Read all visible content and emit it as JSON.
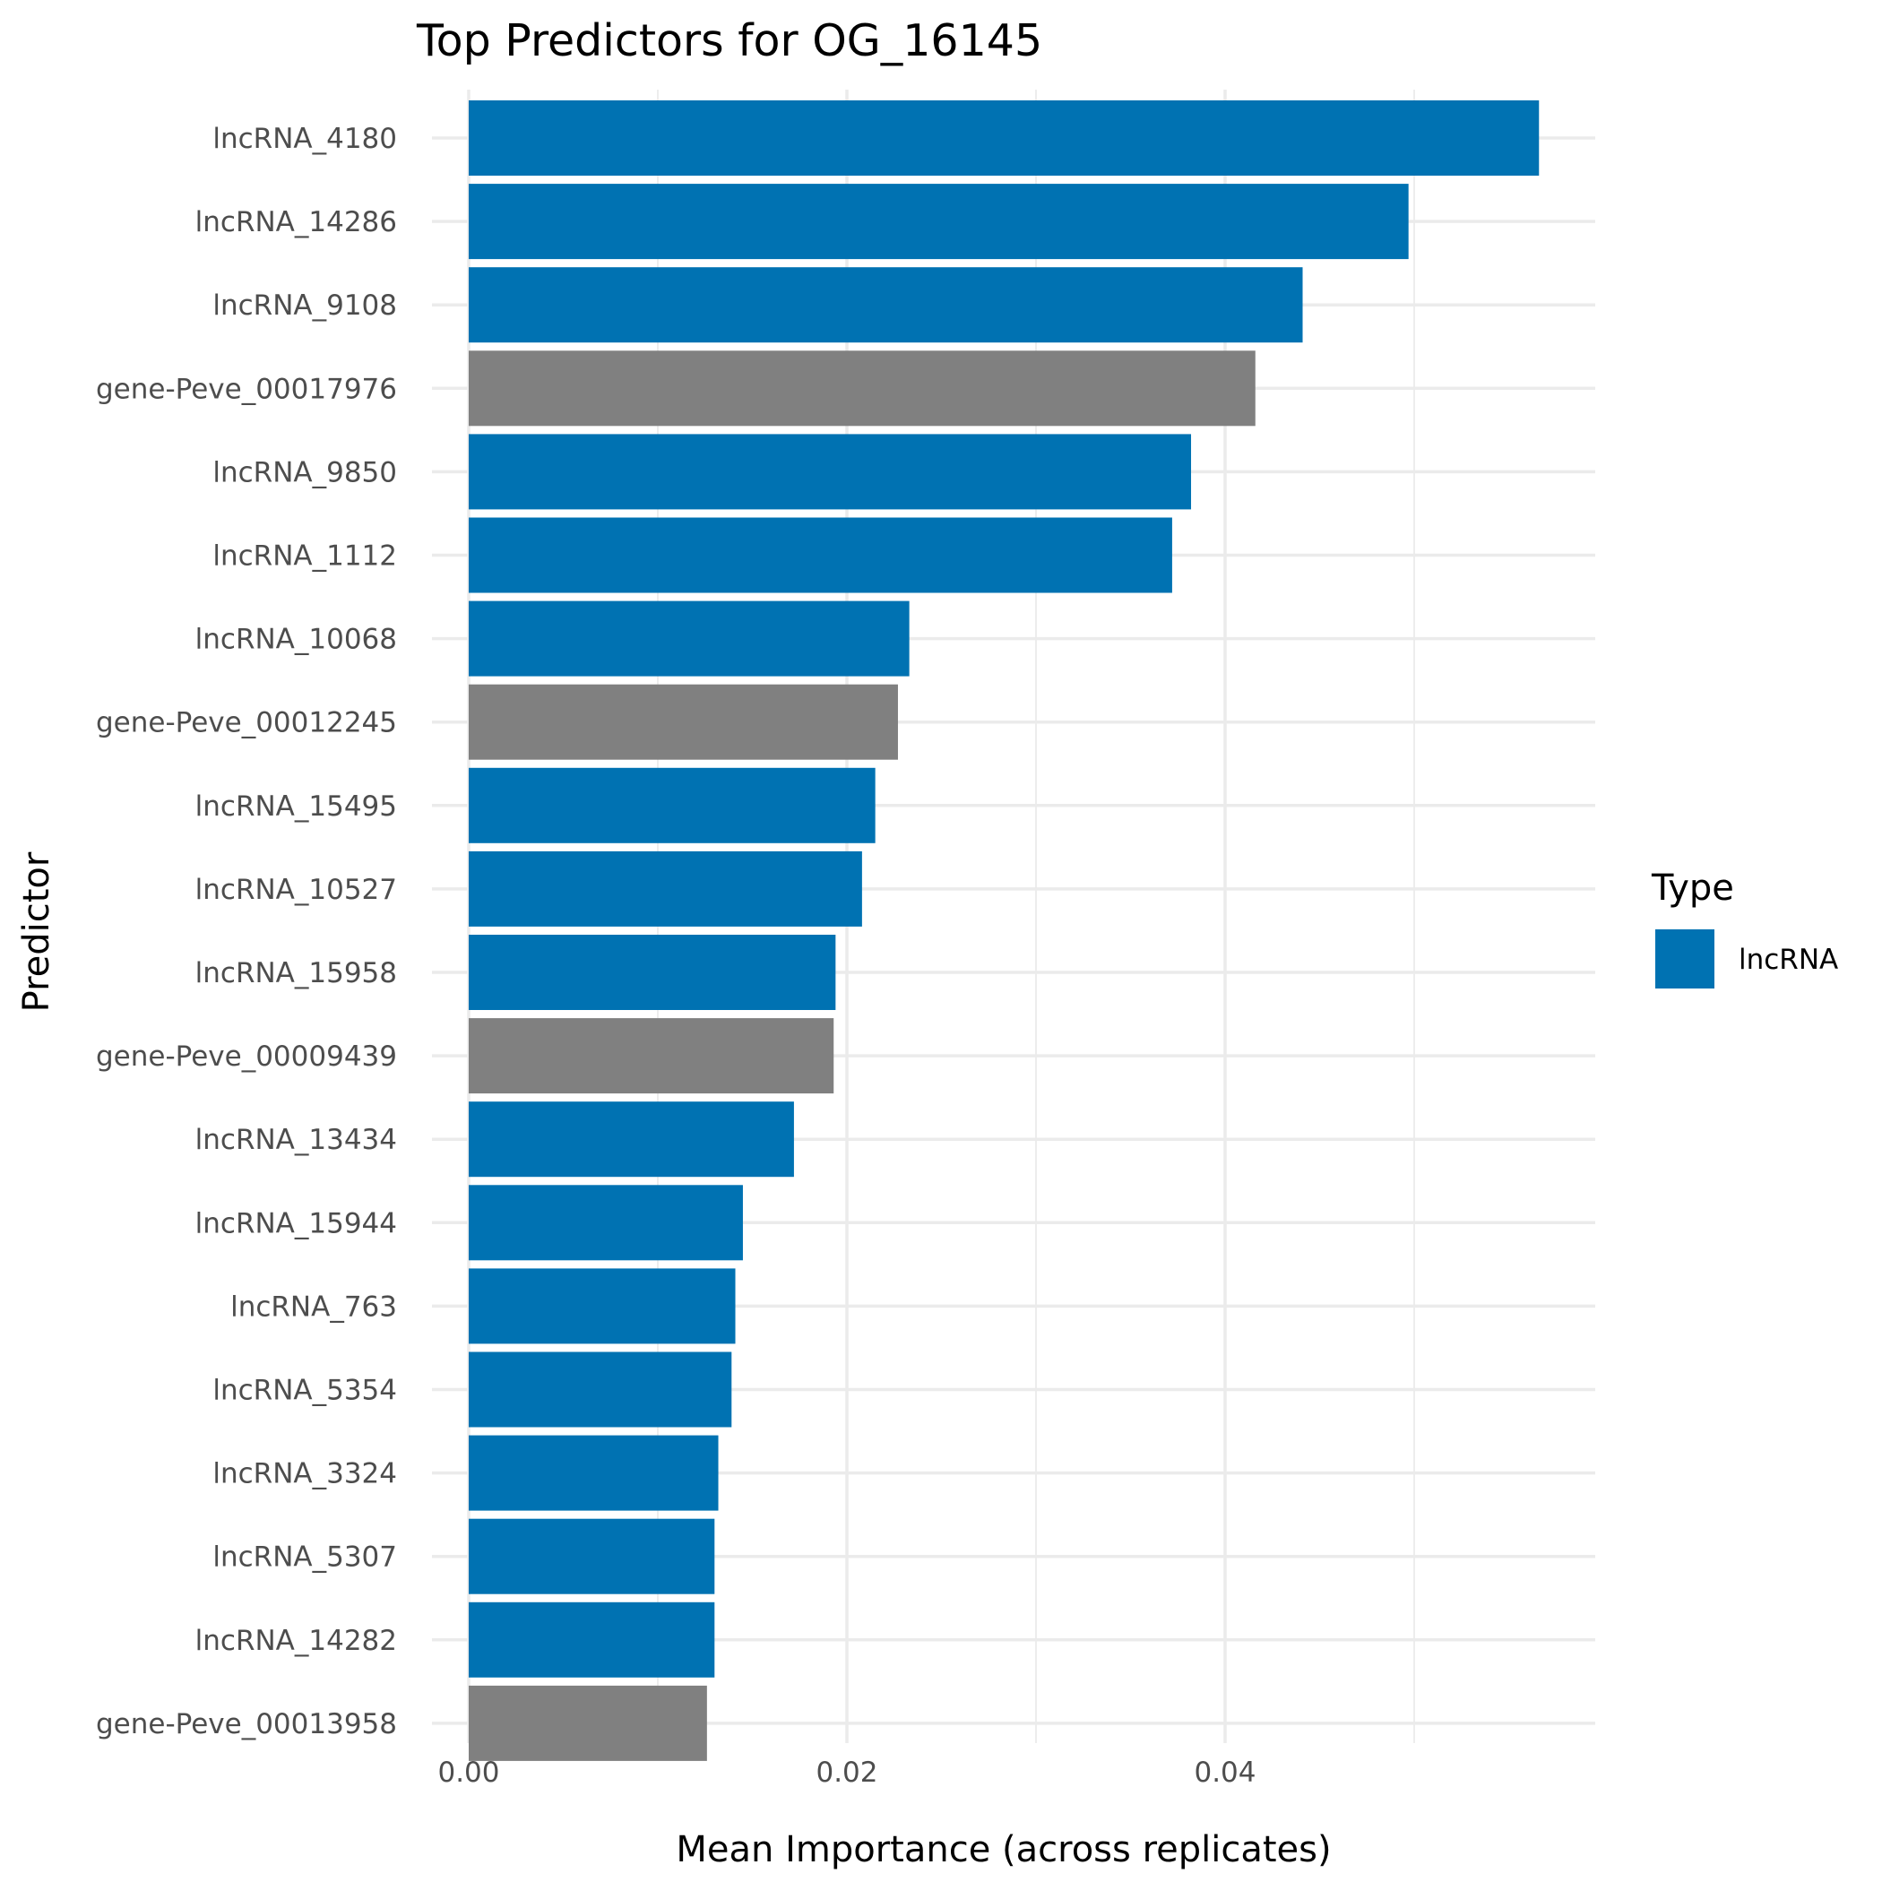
{
  "chart_data": {
    "type": "bar",
    "orientation": "horizontal",
    "title": "Top Predictors for OG_16145",
    "xlabel": "Mean Importance (across replicates)",
    "ylabel": "Predictor",
    "xlim": [
      0,
      0.0595
    ],
    "x_ticks": [
      0.0,
      0.02,
      0.04
    ],
    "x_tick_labels": [
      "0.00",
      "0.02",
      "0.04"
    ],
    "grid": true,
    "legend": {
      "title": "Type",
      "placement": "right",
      "entries": [
        {
          "label": "lncRNA",
          "color": "#0072B2"
        }
      ]
    },
    "categories": [
      "lncRNA_4180",
      "lncRNA_14286",
      "lncRNA_9108",
      "gene-Peve_00017976",
      "lncRNA_9850",
      "lncRNA_1112",
      "lncRNA_10068",
      "gene-Peve_00012245",
      "lncRNA_15495",
      "lncRNA_10527",
      "lncRNA_15958",
      "gene-Peve_00009439",
      "lncRNA_13434",
      "lncRNA_15944",
      "lncRNA_763",
      "lncRNA_5354",
      "lncRNA_3324",
      "lncRNA_5307",
      "lncRNA_14282",
      "gene-Peve_00013958"
    ],
    "values": [
      0.0566,
      0.0497,
      0.0441,
      0.0416,
      0.0382,
      0.0372,
      0.0233,
      0.0227,
      0.0215,
      0.0208,
      0.0194,
      0.0193,
      0.0172,
      0.0145,
      0.0141,
      0.0139,
      0.0132,
      0.013,
      0.013,
      0.0126
    ],
    "bar_colors": [
      "#0072B2",
      "#0072B2",
      "#0072B2",
      "#808080",
      "#0072B2",
      "#0072B2",
      "#0072B2",
      "#808080",
      "#0072B2",
      "#0072B2",
      "#0072B2",
      "#808080",
      "#0072B2",
      "#0072B2",
      "#0072B2",
      "#0072B2",
      "#0072B2",
      "#0072B2",
      "#0072B2",
      "#808080"
    ]
  }
}
